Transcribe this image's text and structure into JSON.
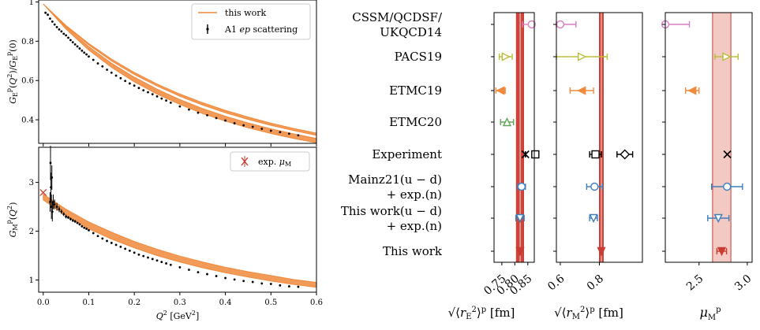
{
  "colors": {
    "orange": "#f08a3c",
    "red": "#c83c32",
    "redfill": "#f2c9c3",
    "pink": "#d87ec2",
    "olive": "#bcbd3a",
    "green": "#5fa85a",
    "blue": "#3f7fbd",
    "black": "#000000"
  },
  "chart_data": [
    {
      "type": "scatter",
      "panel": "top-left",
      "xlabel": "",
      "ylabel": "G_E^p(Q^2)/G_E^p(0)",
      "xlim": [
        -0.01,
        0.6
      ],
      "ylim": [
        0.28,
        1.01
      ],
      "yticks": [
        0.4,
        0.6,
        0.8,
        1.0
      ],
      "legend": {
        "placement": "top-right",
        "entries": [
          "this work",
          "A1 ep scattering"
        ]
      },
      "bands": [
        {
          "name": "this work",
          "center_radius_fm2": 0.66,
          "x": [
            0,
            0.05,
            0.1,
            0.15,
            0.2,
            0.25,
            0.3,
            0.35,
            0.4,
            0.45,
            0.5,
            0.55,
            0.6
          ],
          "upper": [
            0.99,
            0.872,
            0.772,
            0.688,
            0.617,
            0.556,
            0.503,
            0.457,
            0.418,
            0.384,
            0.354,
            0.328,
            0.305
          ],
          "lower": [
            0.99,
            0.862,
            0.755,
            0.667,
            0.593,
            0.531,
            0.478,
            0.432,
            0.393,
            0.359,
            0.33,
            0.305,
            0.283
          ]
        },
        {
          "name": "this work",
          "x": [
            0,
            0.05,
            0.1,
            0.15,
            0.2,
            0.25,
            0.3,
            0.35,
            0.4,
            0.45,
            0.5,
            0.55,
            0.6
          ],
          "upper": [
            0.99,
            0.88,
            0.788,
            0.709,
            0.641,
            0.582,
            0.531,
            0.487,
            0.448,
            0.414,
            0.383,
            0.356,
            0.332
          ],
          "lower": [
            0.99,
            0.876,
            0.781,
            0.7,
            0.631,
            0.572,
            0.52,
            0.475,
            0.436,
            0.402,
            0.372,
            0.345,
            0.321
          ]
        }
      ],
      "points": {
        "name": "A1 ep scattering",
        "x": [
          0.005,
          0.01,
          0.015,
          0.02,
          0.025,
          0.03,
          0.035,
          0.04,
          0.045,
          0.05,
          0.055,
          0.06,
          0.065,
          0.07,
          0.075,
          0.08,
          0.085,
          0.09,
          0.095,
          0.1,
          0.11,
          0.12,
          0.13,
          0.14,
          0.15,
          0.16,
          0.17,
          0.18,
          0.19,
          0.2,
          0.21,
          0.22,
          0.23,
          0.24,
          0.25,
          0.26,
          0.27,
          0.28,
          0.3,
          0.32,
          0.34,
          0.36,
          0.38,
          0.4,
          0.42,
          0.44,
          0.46,
          0.48,
          0.5,
          0.52,
          0.54,
          0.56
        ],
        "y": [
          0.945,
          0.935,
          0.915,
          0.9,
          0.885,
          0.872,
          0.86,
          0.85,
          0.838,
          0.83,
          0.818,
          0.806,
          0.795,
          0.784,
          0.774,
          0.763,
          0.752,
          0.742,
          0.733,
          0.722,
          0.705,
          0.687,
          0.672,
          0.655,
          0.64,
          0.625,
          0.612,
          0.598,
          0.585,
          0.574,
          0.562,
          0.55,
          0.54,
          0.53,
          0.519,
          0.508,
          0.498,
          0.487,
          0.468,
          0.452,
          0.436,
          0.423,
          0.409,
          0.396,
          0.382,
          0.372,
          0.364,
          0.354,
          0.344,
          0.337,
          0.329,
          0.321
        ]
      }
    },
    {
      "type": "scatter",
      "panel": "bottom-left",
      "xlabel": "Q^2 [GeV^2]",
      "ylabel": "G_M^p(Q^2)",
      "xlim": [
        -0.01,
        0.6
      ],
      "ylim": [
        0.75,
        3.72
      ],
      "xticks": [
        0.0,
        0.1,
        0.2,
        0.3,
        0.4,
        0.5,
        0.6
      ],
      "xticklabels": [
        "0.0",
        "0.1",
        "0.2",
        "0.3",
        "0.4",
        "0.5",
        "0.6"
      ],
      "yticks": [
        1,
        2,
        3
      ],
      "legend": {
        "placement": "top-right",
        "entries": [
          "exp. μ_M"
        ]
      },
      "exp_mu_M": {
        "x": 0,
        "y": 2.793
      },
      "bands": [
        {
          "name": "this work",
          "x": [
            0,
            0.05,
            0.1,
            0.15,
            0.2,
            0.25,
            0.3,
            0.35,
            0.4,
            0.45,
            0.5,
            0.55,
            0.6
          ],
          "upper": [
            2.76,
            2.45,
            2.19,
            1.98,
            1.79,
            1.63,
            1.49,
            1.37,
            1.26,
            1.17,
            1.09,
            1.01,
            0.95
          ],
          "lower": [
            2.64,
            2.32,
            2.05,
            1.84,
            1.66,
            1.5,
            1.37,
            1.25,
            1.15,
            1.06,
            0.98,
            0.91,
            0.85
          ]
        }
      ],
      "points": {
        "name": "A1 ep scattering",
        "x": [
          0.015,
          0.016,
          0.017,
          0.018,
          0.019,
          0.02,
          0.022,
          0.025,
          0.03,
          0.035,
          0.04,
          0.045,
          0.05,
          0.055,
          0.06,
          0.065,
          0.07,
          0.075,
          0.08,
          0.085,
          0.09,
          0.095,
          0.1,
          0.11,
          0.12,
          0.13,
          0.14,
          0.15,
          0.16,
          0.17,
          0.18,
          0.19,
          0.2,
          0.21,
          0.22,
          0.23,
          0.24,
          0.25,
          0.26,
          0.27,
          0.28,
          0.3,
          0.32,
          0.34,
          0.36,
          0.38,
          0.4,
          0.42,
          0.44,
          0.46,
          0.48,
          0.5,
          0.52,
          0.54,
          0.56
        ],
        "y": [
          2.6,
          3.4,
          2.9,
          2.5,
          3.1,
          2.4,
          2.6,
          2.55,
          2.5,
          2.45,
          2.4,
          2.35,
          2.3,
          2.28,
          2.25,
          2.22,
          2.2,
          2.17,
          2.14,
          2.1,
          2.07,
          2.05,
          2.02,
          1.96,
          1.9,
          1.85,
          1.8,
          1.76,
          1.72,
          1.68,
          1.64,
          1.6,
          1.56,
          1.52,
          1.49,
          1.46,
          1.43,
          1.4,
          1.37,
          1.34,
          1.31,
          1.26,
          1.21,
          1.16,
          1.12,
          1.08,
          1.04,
          1.01,
          0.98,
          0.96,
          0.93,
          0.92,
          0.89,
          0.87,
          0.86
        ],
        "yerr": [
          0.2,
          0.35,
          0.3,
          0.25,
          0.25,
          0.2,
          0.15,
          0.1,
          0.08,
          0.06,
          0.05,
          0.04,
          0.04,
          0.03,
          0.03,
          0.03,
          0.03,
          0.02,
          0.02,
          0.02,
          0.02,
          0.02,
          0.02,
          0.02,
          0.02,
          0.02,
          0.02,
          0.02,
          0.02,
          0.02,
          0.02,
          0.02,
          0.02,
          0.02,
          0.02,
          0.02,
          0.02,
          0.02,
          0.02,
          0.02,
          0.02,
          0.02,
          0.02,
          0.02,
          0.02,
          0.02,
          0.02,
          0.02,
          0.02,
          0.02,
          0.02,
          0.02,
          0.02,
          0.02,
          0.02
        ]
      }
    },
    {
      "type": "scatter",
      "panel": "comparison",
      "categories": [
        "CSSM/QCDSF/\nUKQCD14",
        "PACS19",
        "ETMC19",
        "ETMC20",
        "Experiment",
        "Mainz21(u − d)\n+ exp.(n)",
        "This work(u − d)\n+ exp.(n)",
        "This work"
      ],
      "subpanels": [
        {
          "xlabel": "√⟨r_E^2⟩^p [fm]",
          "xlim": [
            0.72,
            0.875
          ],
          "xticks": [
            0.75,
            0.8,
            0.85
          ],
          "xticklabels": [
            "0.75",
            "0.80",
            "0.85"
          ],
          "band": {
            "center": 0.82,
            "lo": 0.806,
            "hi": 0.834,
            "inner_lo": 0.819,
            "inner_hi": 0.822
          },
          "points": [
            {
              "category": "CSSM/QCDSF/\nUKQCD14",
              "value": 0.865,
              "err": 0.035,
              "marker": "circle-open",
              "color": "pink"
            },
            {
              "category": "PACS19",
              "value": 0.765,
              "err": 0.025,
              "marker": "tri-right-open",
              "color": "olive"
            },
            {
              "category": "ETMC19",
              "value": 0.745,
              "err": 0.018,
              "marker": "tri-left",
              "color": "orange"
            },
            {
              "category": "ETMC20",
              "value": 0.77,
              "err": 0.025,
              "marker": "tri-up-open",
              "color": "green"
            },
            {
              "category": "Experiment",
              "value": 0.8409,
              "err": 0.0004,
              "marker": "x",
              "color": "black"
            },
            {
              "category": "Experiment",
              "value": 0.879,
              "err": 0.008,
              "marker": "square-open",
              "color": "black"
            },
            {
              "category": "Mainz21(u − d)\n+ exp.(n)",
              "value": 0.826,
              "err": 0.015,
              "marker": "circle-open",
              "color": "blue"
            },
            {
              "category": "This work(u − d)\n+ exp.(n)",
              "value": 0.82,
              "err": 0.016,
              "marker": "tri-down-open",
              "color": "blue"
            },
            {
              "category": "This work",
              "value": 0.82,
              "err": 0.004,
              "marker": "tri-down",
              "color": "red"
            }
          ]
        },
        {
          "xlabel": "√⟨r_M^2⟩^p [fm]",
          "xlim": [
            0.58,
            1.02
          ],
          "xticks": [
            0.6,
            0.8
          ],
          "xticklabels": [
            "0.6",
            "0.8"
          ],
          "band": {
            "center": 0.81,
            "lo": 0.8,
            "hi": 0.82,
            "inner_lo": 0.808,
            "inner_hi": 0.812
          },
          "points": [
            {
              "category": "CSSM/QCDSF/\nUKQCD14",
              "value": 0.6,
              "err": 0.08,
              "marker": "circle-open",
              "color": "pink"
            },
            {
              "category": "PACS19",
              "value": 0.71,
              "err": 0.13,
              "marker": "tri-right-open",
              "color": "olive"
            },
            {
              "category": "ETMC19",
              "value": 0.71,
              "err": 0.06,
              "marker": "tri-left",
              "color": "orange"
            },
            {
              "category": "Experiment",
              "value": 0.78,
              "err": 0.03,
              "marker": "square-open",
              "color": "black"
            },
            {
              "category": "Experiment",
              "value": 0.93,
              "err": 0.04,
              "marker": "diamond-open",
              "color": "black"
            },
            {
              "category": "Mainz21(u − d)\n+ exp.(n)",
              "value": 0.775,
              "err": 0.04,
              "marker": "circle-open",
              "color": "blue"
            },
            {
              "category": "This work(u − d)\n+ exp.(n)",
              "value": 0.77,
              "err": 0.02,
              "marker": "tri-down-open",
              "color": "blue"
            },
            {
              "category": "This work",
              "value": 0.81,
              "err": 0.004,
              "marker": "tri-down",
              "color": "red"
            }
          ]
        },
        {
          "xlabel": "μ_M^p",
          "xlim": [
            2.15,
            3.05
          ],
          "xticks": [
            2.5,
            3.0
          ],
          "xticklabels": [
            "2.5",
            "3.0"
          ],
          "band": {
            "center": 2.735,
            "lo": 2.64,
            "hi": 2.83
          },
          "points": [
            {
              "category": "CSSM/QCDSF/\nUKQCD14",
              "value": 2.15,
              "err": 0.25,
              "marker": "circle-open",
              "color": "pink"
            },
            {
              "category": "PACS19",
              "value": 2.785,
              "err": 0.12,
              "marker": "tri-right-open",
              "color": "olive"
            },
            {
              "category": "ETMC19",
              "value": 2.43,
              "err": 0.07,
              "marker": "tri-left",
              "color": "orange"
            },
            {
              "category": "Experiment",
              "value": 2.793,
              "err": 0.0,
              "marker": "x",
              "color": "black"
            },
            {
              "category": "Mainz21(u − d)\n+ exp.(n)",
              "value": 2.79,
              "err": 0.16,
              "marker": "circle-open",
              "color": "blue"
            },
            {
              "category": "This work(u − d)\n+ exp.(n)",
              "value": 2.7,
              "err": 0.11,
              "marker": "tri-down-open",
              "color": "blue"
            },
            {
              "category": "This work",
              "value": 2.735,
              "err": 0.05,
              "marker": "tri-down",
              "color": "red"
            }
          ]
        }
      ]
    }
  ]
}
